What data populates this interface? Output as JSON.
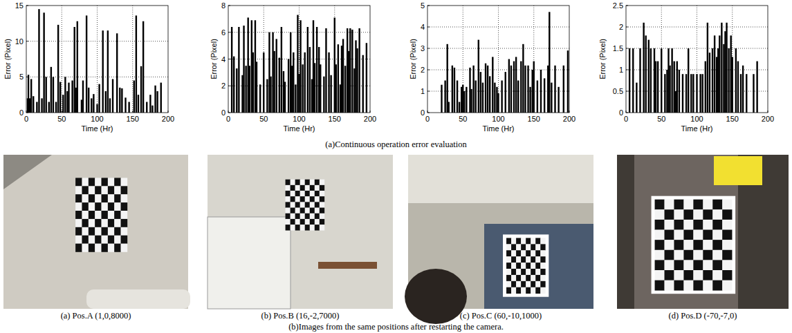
{
  "chart_data": [
    {
      "type": "bar",
      "x_label": "Time (Hr)",
      "y_label": "Error (Pixel)",
      "color": "#000000",
      "grid": true,
      "xlim": [
        0,
        200
      ],
      "xticks": [
        0,
        50,
        100,
        150,
        200
      ],
      "ylim": [
        0,
        15
      ],
      "yticks": [
        0,
        5,
        10,
        15
      ],
      "x": [
        2,
        3,
        5,
        7,
        10,
        15,
        18,
        22,
        25,
        28,
        32,
        35,
        38,
        42,
        45,
        48,
        52,
        55,
        58,
        60,
        65,
        68,
        70,
        72,
        78,
        80,
        85,
        88,
        92,
        95,
        100,
        103,
        108,
        112,
        115,
        118,
        122,
        128,
        132,
        135,
        140,
        145,
        152,
        155,
        158,
        162,
        165,
        170,
        175,
        178,
        182,
        185,
        190
      ],
      "values": [
        2,
        5.3,
        2,
        4.7,
        2.3,
        1.5,
        14.5,
        2,
        14,
        5,
        1.5,
        6.4,
        5,
        1.5,
        12.3,
        4.3,
        2.5,
        5,
        3,
        4.2,
        4.5,
        12,
        3.5,
        12.8,
        1.8,
        4.5,
        13.6,
        3.5,
        2,
        2.6,
        1.2,
        4,
        11.5,
        3,
        11.5,
        2,
        4.7,
        11.1,
        3.5,
        3.4,
        2.1,
        1.5,
        4.5,
        13.6,
        2.5,
        6.5,
        12.8,
        1.5,
        2.5,
        1,
        3.8,
        3,
        4.2
      ]
    },
    {
      "type": "bar",
      "x_label": "Time (Hr)",
      "y_label": "Error (Pixel)",
      "color": "#000000",
      "grid": true,
      "xlim": [
        0,
        200
      ],
      "xticks": [
        0,
        50,
        100,
        150,
        200
      ],
      "ylim": [
        0,
        8
      ],
      "yticks": [
        0,
        2,
        4,
        6,
        8
      ],
      "x": [
        5,
        8,
        12,
        15,
        20,
        22,
        25,
        28,
        30,
        33,
        35,
        38,
        40,
        45,
        50,
        55,
        58,
        60,
        63,
        65,
        68,
        72,
        75,
        78,
        80,
        85,
        88,
        90,
        92,
        95,
        98,
        100,
        102,
        105,
        108,
        112,
        115,
        118,
        120,
        122,
        125,
        128,
        130,
        135,
        138,
        142,
        145,
        150,
        152,
        155,
        158,
        160,
        162,
        165,
        168,
        170,
        172,
        175,
        178,
        180,
        182,
        185,
        190,
        195
      ],
      "values": [
        6.4,
        4.2,
        3.3,
        6.4,
        2.8,
        6.5,
        3.5,
        7.1,
        3.5,
        6.9,
        4.5,
        6.9,
        3.8,
        2.1,
        4.5,
        2.5,
        6,
        2.7,
        6,
        4.6,
        5.5,
        4.1,
        6.4,
        3.1,
        2.3,
        4,
        6,
        3.5,
        4.5,
        2.1,
        7.3,
        2.9,
        6.9,
        3.6,
        4.5,
        6.4,
        4.9,
        2.5,
        6.9,
        3.7,
        6.4,
        4.9,
        3.6,
        2.7,
        6.3,
        4.5,
        2.8,
        7.1,
        3.6,
        5.1,
        2.1,
        5,
        5.5,
        3.5,
        6.3,
        4.6,
        6.3,
        6.2,
        3.3,
        5.4,
        4.8,
        6.3,
        4.3,
        5.2
      ]
    },
    {
      "type": "bar",
      "x_label": "Time (Hr)",
      "y_label": "Error (Pixel)",
      "color": "#000000",
      "grid": true,
      "xlim": [
        0,
        200
      ],
      "xticks": [
        0,
        50,
        100,
        150,
        200
      ],
      "ylim": [
        0,
        5
      ],
      "yticks": [
        0,
        1,
        2,
        3,
        4,
        5
      ],
      "x": [
        20,
        25,
        28,
        30,
        35,
        38,
        42,
        45,
        48,
        50,
        52,
        55,
        60,
        62,
        65,
        68,
        72,
        75,
        78,
        82,
        85,
        88,
        92,
        95,
        98,
        100,
        105,
        110,
        115,
        118,
        122,
        125,
        128,
        132,
        135,
        138,
        142,
        145,
        148,
        150,
        155,
        160,
        165,
        170,
        172,
        175,
        180,
        185,
        192,
        198
      ],
      "values": [
        1.3,
        1.5,
        3.2,
        0.5,
        2.2,
        2.1,
        1.5,
        0.5,
        1.2,
        1.3,
        1,
        1.2,
        2.1,
        1.1,
        2.2,
        1.5,
        3.4,
        1.9,
        1.4,
        2.3,
        2.2,
        1.7,
        2.6,
        1.4,
        1.2,
        0.9,
        1.5,
        1.9,
        2.5,
        2.2,
        2.4,
        2.6,
        1.5,
        2.4,
        3.2,
        2.2,
        2.2,
        1.2,
        2,
        2.4,
        1.5,
        2,
        1.6,
        2.2,
        4.7,
        1.4,
        2.2,
        1.2,
        2.2,
        2.9
      ]
    },
    {
      "type": "bar",
      "x_label": "Time (Hr)",
      "y_label": "Error (Pixel)",
      "color": "#000000",
      "grid": true,
      "xlim": [
        0,
        200
      ],
      "xticks": [
        0,
        50,
        100,
        150,
        200
      ],
      "ylim": [
        0,
        2.5
      ],
      "yticks": [
        0,
        0.5,
        1,
        1.5,
        2,
        2.5
      ],
      "x": [
        5,
        10,
        15,
        20,
        25,
        28,
        32,
        35,
        40,
        42,
        45,
        50,
        55,
        58,
        60,
        62,
        65,
        68,
        70,
        72,
        75,
        80,
        85,
        88,
        92,
        95,
        100,
        105,
        108,
        112,
        115,
        118,
        122,
        125,
        128,
        130,
        132,
        135,
        138,
        140,
        142,
        145,
        148,
        150,
        155,
        158,
        162,
        165,
        170,
        180,
        185
      ],
      "values": [
        1.5,
        1.5,
        0.7,
        1.5,
        2.1,
        1.8,
        1.7,
        1.5,
        1.5,
        1.2,
        1.2,
        1.5,
        0.9,
        1,
        1.5,
        1.1,
        1.5,
        1.2,
        0.5,
        1.2,
        1,
        0.9,
        0.9,
        1.5,
        0.9,
        0.9,
        0.9,
        0.9,
        0.9,
        1.2,
        2.1,
        1.4,
        1.5,
        1.8,
        1.3,
        1.5,
        1.8,
        2.1,
        1.6,
        1.9,
        2.1,
        1.5,
        1.8,
        1.3,
        1.5,
        1.2,
        0.9,
        1.1,
        0.9,
        0.9,
        1.2
      ]
    }
  ],
  "figure": {
    "caption_a": "(a)Continuous operation error evaluation",
    "images": [
      {
        "caption": "(a) Pos.A (1,0,8000)"
      },
      {
        "caption": "(b) Pos.B (16,-2,7000)"
      },
      {
        "caption": "(c) Pos.C (60,-10,1000)"
      },
      {
        "caption": "(d) Pos.D (-70,-7,0)"
      }
    ],
    "caption_b": "(b)Images from the same positions after restarting the camera."
  }
}
